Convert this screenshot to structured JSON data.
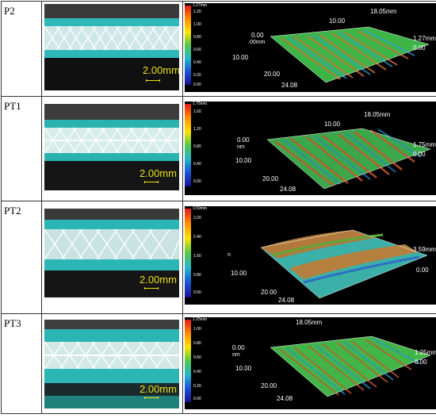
{
  "scale_label": "2.00mm",
  "rows": [
    {
      "label": "P2",
      "colorbar": {
        "max": "1.27mm",
        "ticks": [
          "1.20",
          "1.00",
          "0.80",
          "0.60",
          "0.40",
          "0.20",
          "0.00"
        ]
      },
      "axis": {
        "x_max": "18.05mm",
        "x_min": "0.00",
        "x_unit": ".00mm",
        "y_mid": "10.00",
        "y_low": "20.00",
        "y_max": "24.08",
        "z_max": "1.27mm",
        "z_min": "0.00"
      }
    },
    {
      "label": "PT1",
      "colorbar": {
        "max": "1.75mm",
        "ticks": [
          "1.60",
          "1.20",
          "0.80",
          "0.40",
          "0.00"
        ]
      },
      "axis": {
        "x_max": "18.05mm",
        "x_min": "0.00",
        "x_unit": "nm",
        "y_mid": "10.00",
        "y_low": "20.00",
        "y_max": "24.08",
        "z_max": "1.75mm",
        "z_min": "0.00"
      }
    },
    {
      "label": "PT2",
      "colorbar": {
        "max": "3.59mm",
        "ticks": [
          "3.20",
          "2.40",
          "1.60",
          "0.80",
          "0.00"
        ]
      },
      "axis": {
        "x_max": "",
        "x_min": "",
        "x_unit": "n",
        "y_mid": "10.00",
        "y_low": "20.00",
        "y_max": "24.08",
        "z_max": "3.59mm",
        "z_min": "0.00"
      }
    },
    {
      "label": "PT3",
      "colorbar": {
        "max": "1.25mm",
        "ticks": [
          "1.00",
          "0.80",
          "0.60",
          "0.40",
          "0.20",
          "0.00"
        ]
      },
      "axis": {
        "x_max": "18.05mm",
        "x_min": "0.00",
        "x_unit": "nm",
        "y_mid": "10.00",
        "y_low": "20.00",
        "y_max": "24.08",
        "z_max": "1.25mm",
        "z_min": "0.00"
      }
    }
  ]
}
